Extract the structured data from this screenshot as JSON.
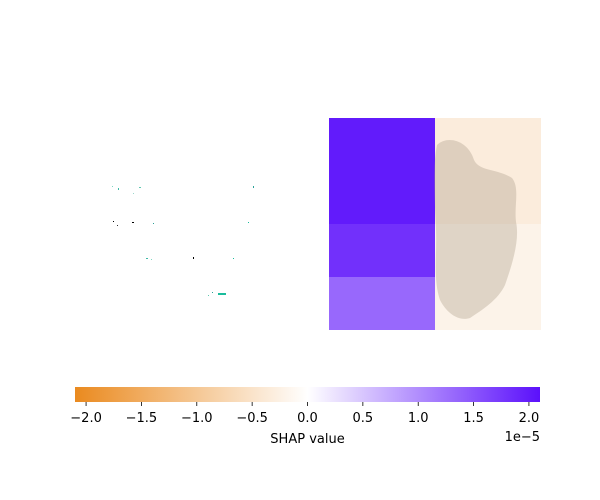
{
  "chart_data": {
    "type": "heatmap",
    "panels": [
      {
        "name": "input-image",
        "description_kind": "sparse-pixels",
        "pixel_colors": [
          "#2aa198",
          "#000000",
          "#1abc9c"
        ]
      },
      {
        "name": "shap-overlay",
        "grid": {
          "rows": 4,
          "cols": 2,
          "values": [
            [
              2.05e-05,
              -3.5e-06
            ],
            [
              2.05e-05,
              -3.5e-06
            ],
            [
              1.85e-05,
              -2e-06
            ],
            [
              1.35e-05,
              -2e-06
            ]
          ]
        }
      }
    ],
    "colorbar": {
      "label": "SHAP value",
      "multiplier_label": "1e−5",
      "range": [
        -2.1,
        2.1
      ],
      "ticks": [
        -2.0,
        -1.5,
        -1.0,
        -0.5,
        0.0,
        0.5,
        1.0,
        1.5,
        2.0
      ],
      "tick_labels": [
        "−2.0",
        "−1.5",
        "−1.0",
        "−0.5",
        "0.0",
        "0.5",
        "1.0",
        "1.5",
        "2.0"
      ],
      "colors": {
        "negative": "#ea8a1f",
        "zero": "#ffffff",
        "positive": "#5b10fb"
      }
    }
  }
}
